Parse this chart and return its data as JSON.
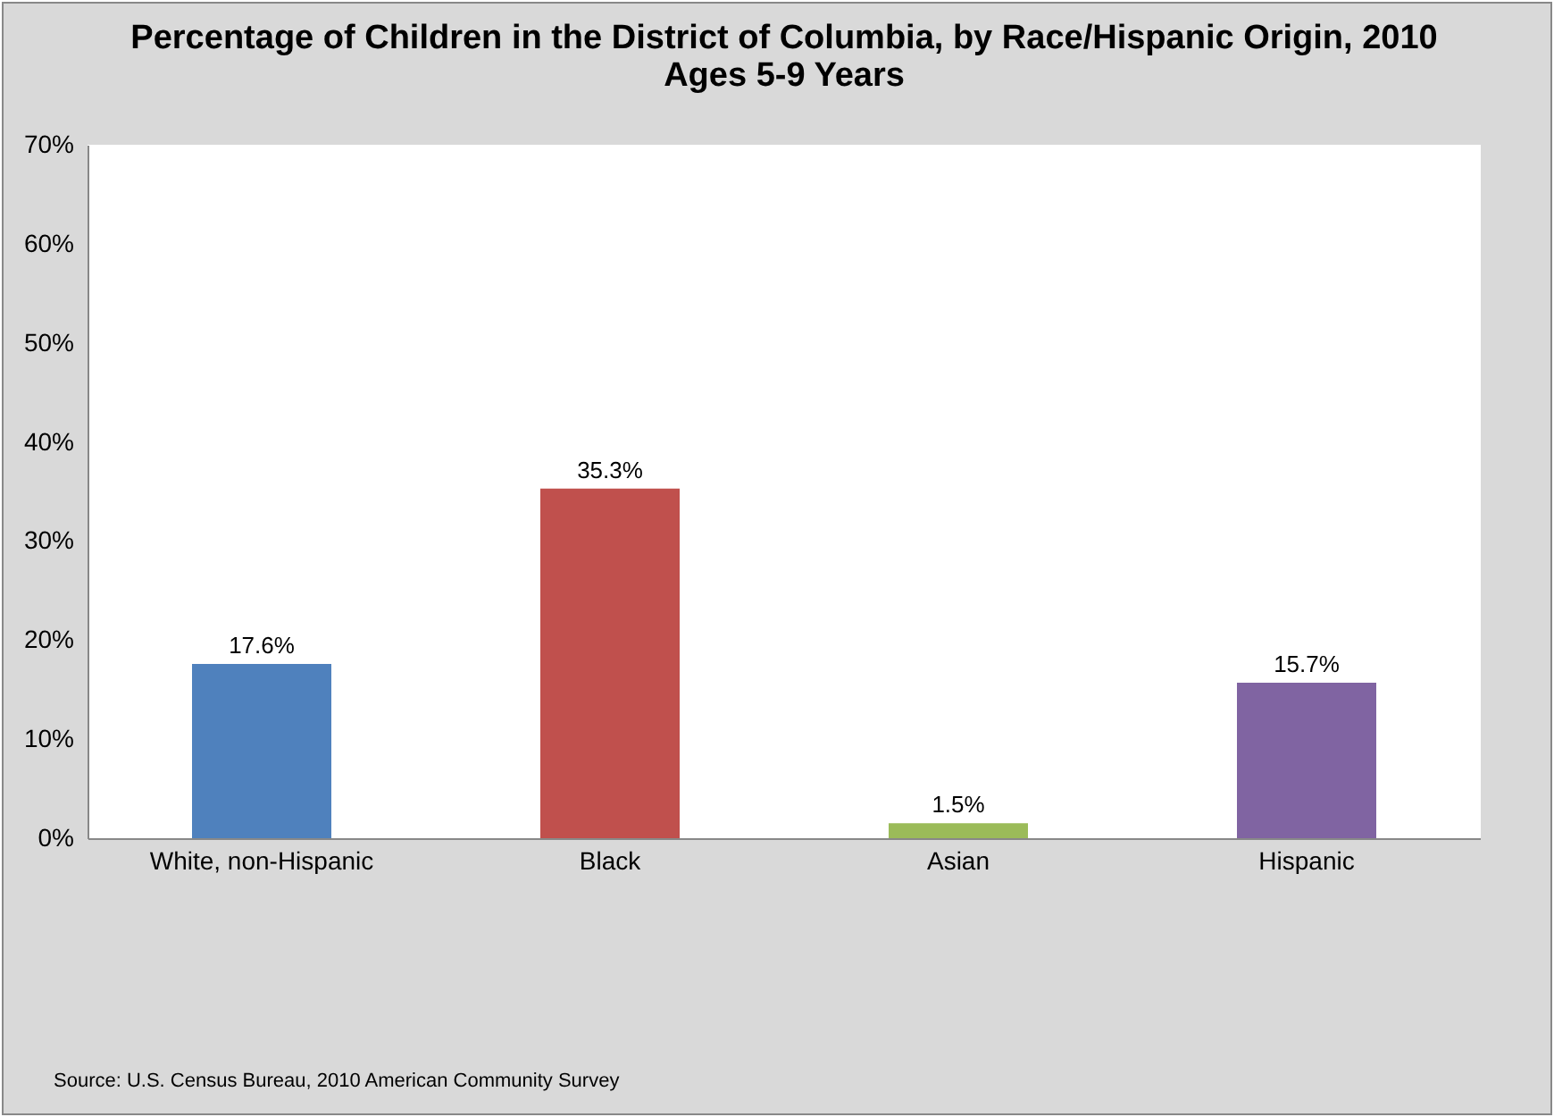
{
  "chart_data": {
    "type": "bar",
    "title": "Percentage of Children in the District of Columbia,\nby Race/Hispanic Origin, 2010",
    "subtitle": "Ages 5-9 Years",
    "categories": [
      "White, non-Hispanic",
      "Black",
      "Asian",
      "Hispanic"
    ],
    "values": [
      17.6,
      35.3,
      1.5,
      15.7
    ],
    "colors": [
      "#4f81bd",
      "#c0504d",
      "#9bbb59",
      "#8064a2"
    ],
    "value_labels": [
      "17.6%",
      "35.3%",
      "1.5%",
      "15.7%"
    ],
    "ylim": [
      0,
      70
    ],
    "yticks": [
      {
        "value": 0,
        "label": "0%"
      },
      {
        "value": 10,
        "label": "10%"
      },
      {
        "value": 20,
        "label": "20%"
      },
      {
        "value": 30,
        "label": "30%"
      },
      {
        "value": 40,
        "label": "40%"
      },
      {
        "value": 50,
        "label": "50%"
      },
      {
        "value": 60,
        "label": "60%"
      },
      {
        "value": 70,
        "label": "70%"
      }
    ],
    "annotations": [
      "Source: U.S. Census Bureau, 2010 American Community Survey"
    ]
  }
}
